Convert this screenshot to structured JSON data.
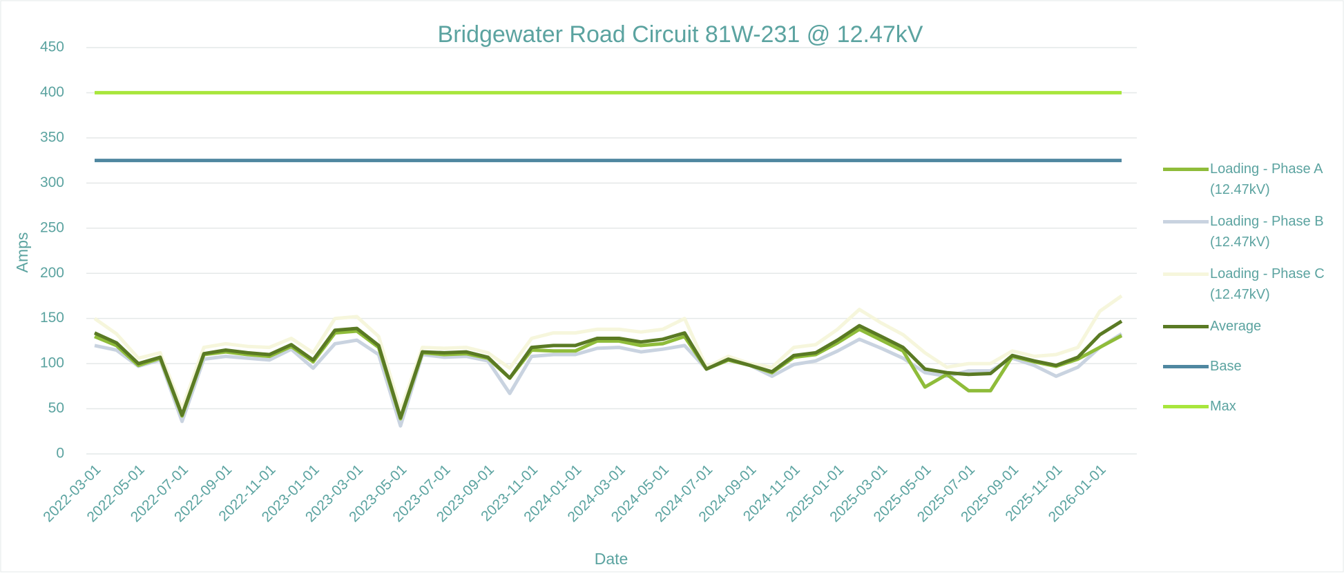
{
  "chart_data": {
    "type": "line",
    "title": "Bridgewater Road Circuit 81W-231 @ 12.47kV",
    "x_label": "Date",
    "y_label": "Amps",
    "categories": [
      "2022-03-01",
      null,
      "2022-05-01",
      null,
      "2022-07-01",
      null,
      "2022-09-01",
      null,
      "2022-11-01",
      null,
      "2023-01-01",
      null,
      "2023-03-01",
      null,
      "2023-05-01",
      null,
      "2023-07-01",
      null,
      "2023-09-01",
      null,
      "2023-11-01",
      null,
      "2024-01-01",
      null,
      "2024-03-01",
      null,
      "2024-05-01",
      null,
      "2024-07-01",
      null,
      "2024-09-01",
      null,
      "2024-11-01",
      null,
      "2025-01-01",
      null,
      "2025-03-01",
      null,
      "2025-05-01",
      null,
      "2025-07-01",
      null,
      "2025-09-01",
      null,
      "2025-11-01",
      null,
      "2026-01-01",
      null
    ],
    "ylim": [
      0,
      450
    ],
    "yticks": [
      0,
      50,
      100,
      150,
      200,
      250,
      300,
      350,
      400,
      450
    ],
    "grid": true,
    "legend": "right",
    "series": [
      {
        "name": "Loading - Phase A (12.47kV)",
        "color": "#8fbc3a",
        "values": [
          130,
          120,
          98,
          106,
          42,
          110,
          113,
          110,
          108,
          119,
          102,
          134,
          136,
          118,
          39,
          112,
          110,
          111,
          106,
          84,
          115,
          114,
          114,
          125,
          125,
          120,
          122,
          130,
          94,
          104,
          98,
          90,
          107,
          110,
          123,
          138,
          126,
          114,
          74,
          88,
          70,
          70,
          108,
          102,
          97,
          105,
          118,
          131
        ]
      },
      {
        "name": "Loading - Phase B (12.47kV)",
        "color": "#c9d3e0",
        "values": [
          120,
          115,
          97,
          104,
          36,
          105,
          108,
          106,
          104,
          116,
          95,
          122,
          126,
          110,
          31,
          110,
          107,
          108,
          103,
          67,
          108,
          110,
          110,
          117,
          118,
          113,
          116,
          120,
          94,
          104,
          98,
          86,
          99,
          103,
          114,
          127,
          117,
          106,
          90,
          86,
          92,
          92,
          106,
          98,
          86,
          96,
          118,
          133
        ]
      },
      {
        "name": "Loading - Phase C (12.47kV)",
        "color": "#f6f6dc",
        "values": [
          150,
          133,
          106,
          112,
          50,
          118,
          122,
          119,
          118,
          128,
          112,
          150,
          152,
          130,
          48,
          118,
          117,
          118,
          112,
          95,
          128,
          134,
          134,
          138,
          138,
          135,
          138,
          150,
          96,
          108,
          100,
          96,
          118,
          121,
          138,
          160,
          145,
          132,
          112,
          96,
          100,
          100,
          114,
          108,
          110,
          118,
          158,
          175
        ]
      },
      {
        "name": "Average",
        "color": "#5a7a24",
        "values": [
          134,
          123,
          100,
          107,
          43,
          111,
          115,
          112,
          110,
          121,
          104,
          137,
          139,
          120,
          40,
          113,
          112,
          113,
          107,
          84,
          118,
          120,
          120,
          128,
          128,
          124,
          127,
          134,
          94,
          105,
          98,
          91,
          109,
          112,
          126,
          142,
          130,
          118,
          94,
          90,
          88,
          89,
          109,
          103,
          98,
          107,
          132,
          147
        ]
      },
      {
        "name": "Base",
        "color": "#4f87a0",
        "values": [
          325,
          325,
          325,
          325,
          325,
          325,
          325,
          325,
          325,
          325,
          325,
          325,
          325,
          325,
          325,
          325,
          325,
          325,
          325,
          325,
          325,
          325,
          325,
          325,
          325,
          325,
          325,
          325,
          325,
          325,
          325,
          325,
          325,
          325,
          325,
          325,
          325,
          325,
          325,
          325,
          325,
          325,
          325,
          325,
          325,
          325,
          325,
          325
        ]
      },
      {
        "name": "Max",
        "color": "#a8e63c",
        "values": [
          400,
          400,
          400,
          400,
          400,
          400,
          400,
          400,
          400,
          400,
          400,
          400,
          400,
          400,
          400,
          400,
          400,
          400,
          400,
          400,
          400,
          400,
          400,
          400,
          400,
          400,
          400,
          400,
          400,
          400,
          400,
          400,
          400,
          400,
          400,
          400,
          400,
          400,
          400,
          400,
          400,
          400,
          400,
          400,
          400,
          400,
          400,
          400
        ]
      }
    ]
  }
}
